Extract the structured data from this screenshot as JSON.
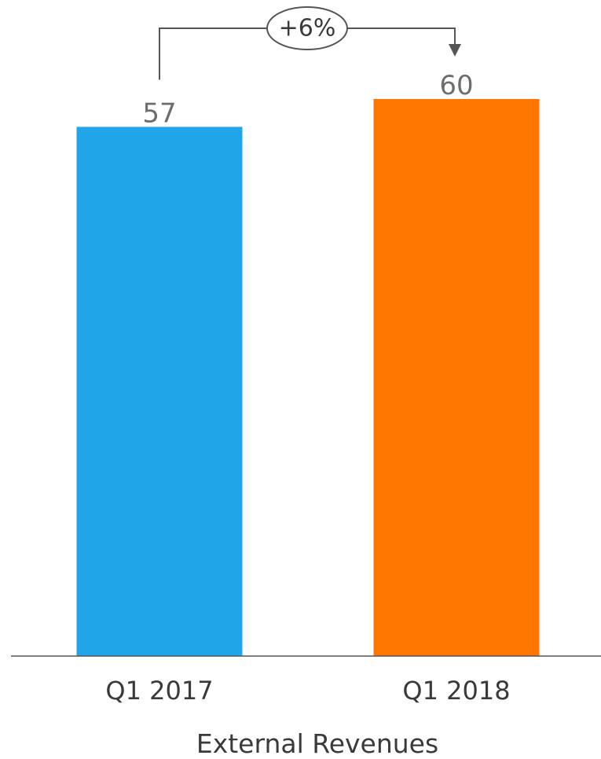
{
  "chart_data": {
    "type": "bar",
    "categories": [
      "Q1 2017",
      "Q1 2018"
    ],
    "values": [
      57,
      60
    ],
    "colors": [
      "#1fa5e8",
      "#ff7500"
    ],
    "xlabel": "External Revenues",
    "ylabel": "",
    "ylim": [
      0,
      60
    ],
    "grid": false,
    "annotation": {
      "from": 0,
      "to": 1,
      "label": "+6%"
    }
  }
}
